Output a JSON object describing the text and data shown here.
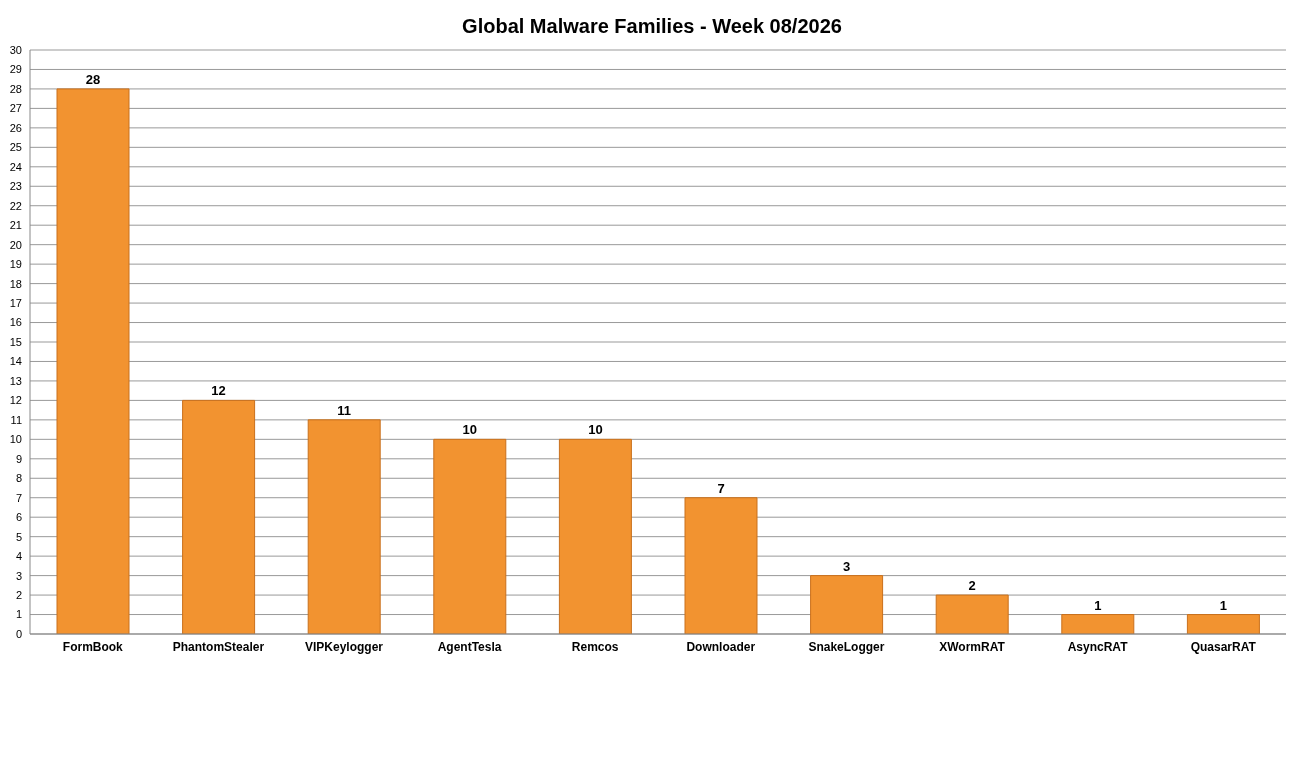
{
  "chart_data": {
    "type": "bar",
    "title": "Global Malware Families - Week 08/2026",
    "categories": [
      "FormBook",
      "PhantomStealer",
      "VIPKeylogger",
      "AgentTesla",
      "Remcos",
      "Downloader",
      "SnakeLogger",
      "XWormRAT",
      "AsyncRAT",
      "QuasarRAT"
    ],
    "values": [
      28,
      12,
      11,
      10,
      10,
      7,
      3,
      2,
      1,
      1
    ],
    "color": "#f29330",
    "ylim": [
      0,
      30
    ],
    "yticks": [
      0,
      1,
      2,
      3,
      4,
      5,
      6,
      7,
      8,
      9,
      10,
      11,
      12,
      13,
      14,
      15,
      16,
      17,
      18,
      19,
      20,
      21,
      22,
      23,
      24,
      25,
      26,
      27,
      28,
      29,
      30
    ],
    "grid": "y",
    "data_labels": true
  }
}
